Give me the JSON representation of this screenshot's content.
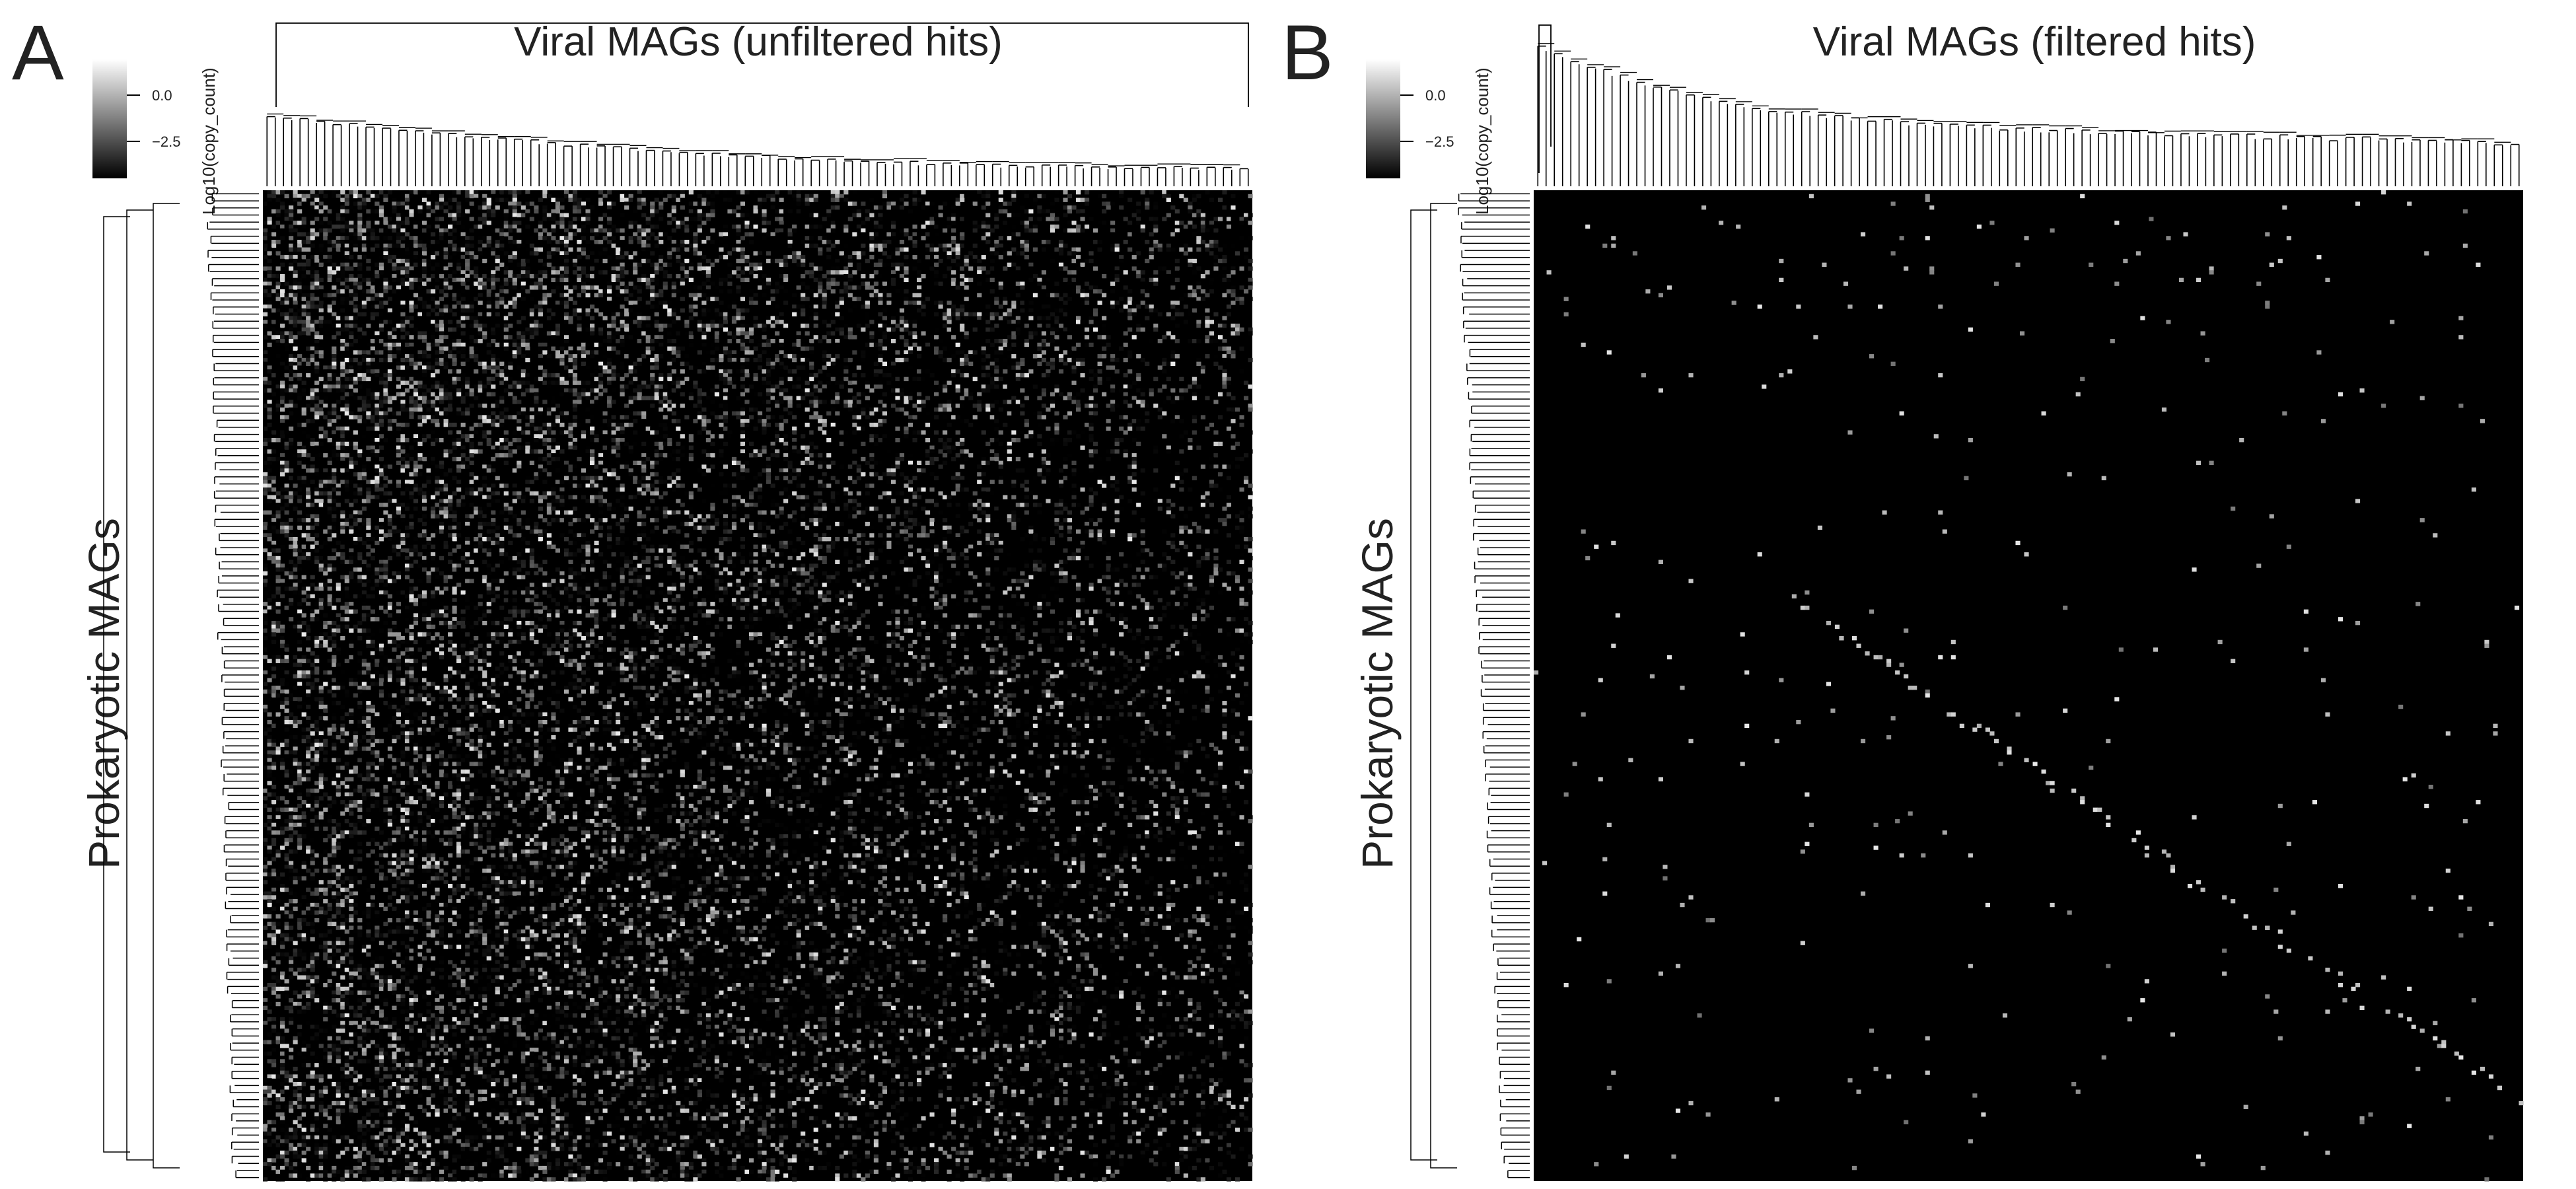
{
  "figure": {
    "background": "#ffffff",
    "ink_color": "#000000"
  },
  "chart_data": [
    {
      "type": "heatmap",
      "panel_label": "A",
      "title": "Viral MAGs (unfiltered hits)",
      "ylabel": "Prokaryotic MAGs",
      "colorbar": {
        "label": "Log10(copy_count)",
        "ticks": [
          0.0,
          -2.5
        ],
        "tick_labels": [
          "0.0",
          "−2.5"
        ],
        "range": [
          -4,
          1
        ],
        "low_color": "#000000",
        "high_color": "#ffffff"
      },
      "rows": 260,
      "cols": 230,
      "pattern": "dense",
      "cell_density": 0.32,
      "cell_value_range": [
        -4,
        0.6
      ],
      "top_dendrogram": true,
      "left_dendrogram": true
    },
    {
      "type": "heatmap",
      "panel_label": "B",
      "title": "Viral MAGs (filtered hits)",
      "ylabel": "Prokaryotic MAGs",
      "colorbar": {
        "label": "Log10(copy_count)",
        "ticks": [
          0.0,
          -2.5
        ],
        "tick_labels": [
          "0.0",
          "−2.5"
        ],
        "range": [
          -4,
          1
        ],
        "low_color": "#000000",
        "high_color": "#ffffff"
      },
      "rows": 260,
      "cols": 230,
      "pattern": "sparse-diagonal",
      "cell_density": 0.0045,
      "cell_value_range": [
        -1.8,
        0.6
      ],
      "top_dendrogram": true,
      "left_dendrogram": true
    }
  ]
}
